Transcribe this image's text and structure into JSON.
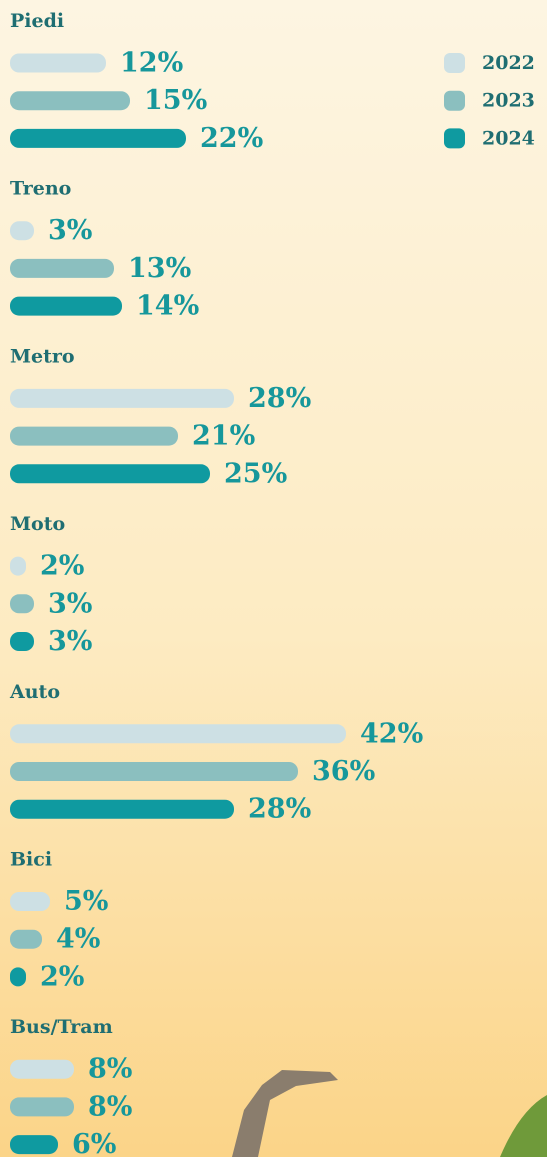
{
  "chart_data": {
    "type": "bar",
    "categories": [
      "Piedi",
      "Treno",
      "Metro",
      "Moto",
      "Auto",
      "Bici",
      "Bus/Tram"
    ],
    "series": [
      {
        "name": "2022",
        "color": "#cde0e4",
        "values": [
          12,
          3,
          28,
          2,
          42,
          5,
          8
        ],
        "value_labels": [
          "12%",
          "3%",
          "28%",
          "2%",
          "42%",
          "5%",
          "8%"
        ]
      },
      {
        "name": "2023",
        "color": "#8bbfbf",
        "values": [
          15,
          13,
          21,
          3,
          36,
          4,
          8
        ],
        "value_labels": [
          "15%",
          "13%",
          "21%",
          "3%",
          "36%",
          "4%",
          "8%"
        ]
      },
      {
        "name": "2024",
        "color": "#0f9aa0",
        "values": [
          22,
          14,
          25,
          3,
          28,
          2,
          6
        ],
        "value_labels": [
          "22%",
          "14%",
          "25%",
          "3%",
          "28%",
          "2%",
          "6%"
        ]
      }
    ],
    "legend": "top-right"
  }
}
